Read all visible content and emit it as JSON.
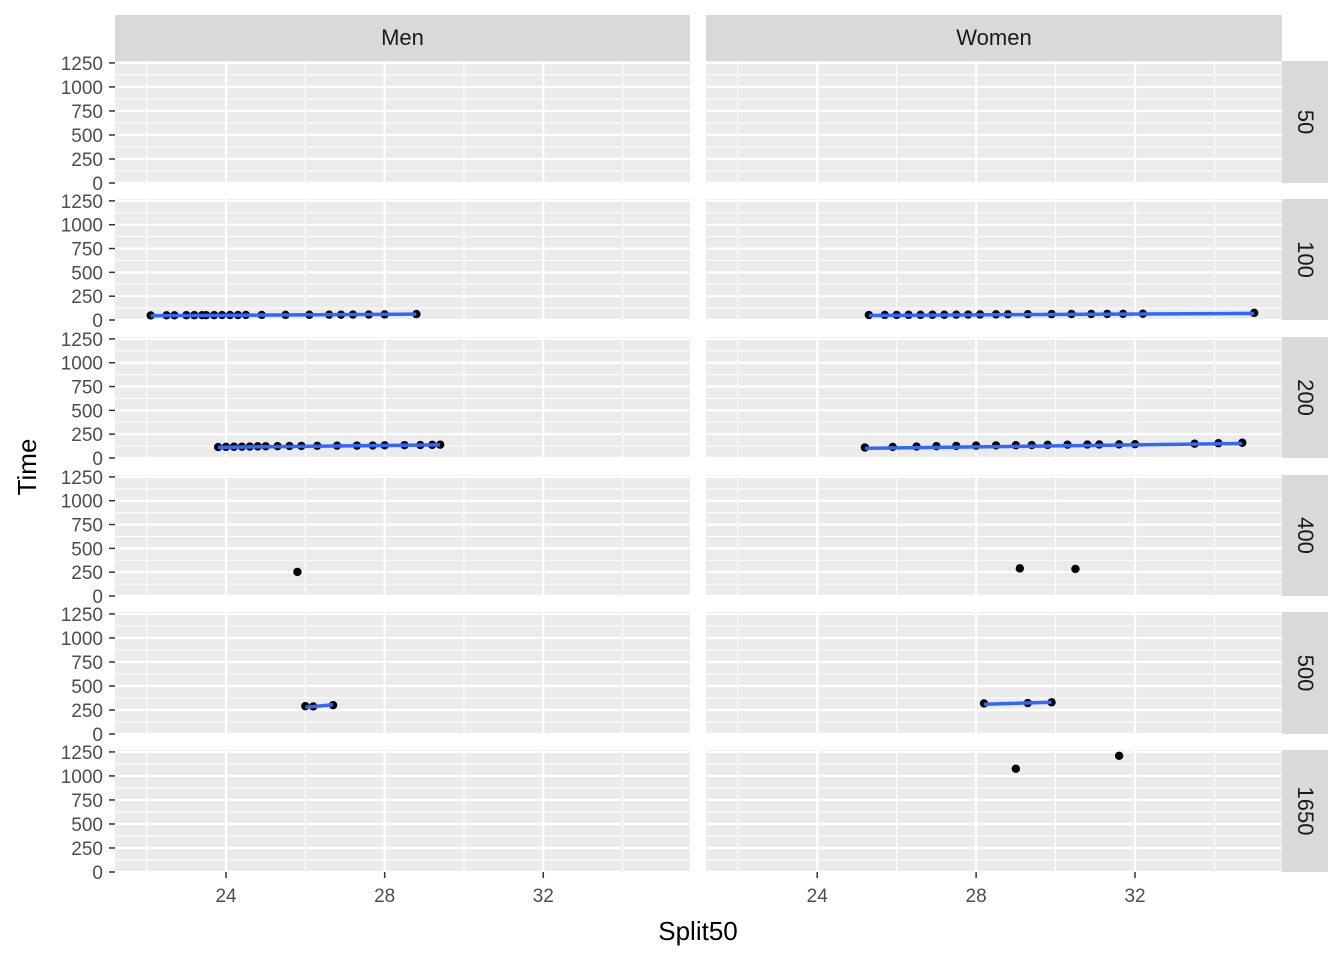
{
  "chart_data": {
    "type": "scatter",
    "title": "",
    "xlabel": "Split50",
    "ylabel": "Time",
    "col_facets": [
      "Men",
      "Women"
    ],
    "row_facets": [
      "50",
      "100",
      "200",
      "400",
      "500",
      "1650"
    ],
    "xlim": [
      21.2,
      35.7
    ],
    "ylim": [
      0,
      1270
    ],
    "x_ticks": [
      24,
      28,
      32
    ],
    "x_tick_labels": [
      "24",
      "28",
      "32"
    ],
    "y_ticks": [
      0,
      250,
      500,
      750,
      1000,
      1250
    ],
    "y_tick_labels": [
      "0",
      "250",
      "500",
      "750",
      "1000",
      "1250"
    ],
    "smooth_line": true,
    "colors": {
      "point": "#000000",
      "smooth": "#3366FF",
      "panel_bg": "#EBEBEB",
      "strip_bg": "#D9D9D9",
      "grid": "#FFFFFF"
    },
    "panels": [
      {
        "col": "Men",
        "row": "50",
        "points": [],
        "smooth": null
      },
      {
        "col": "Women",
        "row": "50",
        "points": [],
        "smooth": null
      },
      {
        "col": "Men",
        "row": "100",
        "points": [
          [
            22.1,
            48
          ],
          [
            22.5,
            49
          ],
          [
            22.7,
            49
          ],
          [
            23.0,
            50
          ],
          [
            23.2,
            50
          ],
          [
            23.4,
            51
          ],
          [
            23.5,
            51
          ],
          [
            23.7,
            51
          ],
          [
            23.9,
            52
          ],
          [
            24.1,
            52
          ],
          [
            24.3,
            52
          ],
          [
            24.5,
            53
          ],
          [
            24.9,
            53
          ],
          [
            25.5,
            54
          ],
          [
            26.1,
            55
          ],
          [
            26.6,
            56
          ],
          [
            26.9,
            56
          ],
          [
            27.2,
            57
          ],
          [
            27.6,
            57
          ],
          [
            28.0,
            58
          ],
          [
            28.8,
            62
          ]
        ],
        "smooth": [
          [
            22.1,
            44
          ],
          [
            28.8,
            62
          ]
        ]
      },
      {
        "col": "Women",
        "row": "100",
        "points": [
          [
            25.3,
            52
          ],
          [
            25.7,
            53
          ],
          [
            26.0,
            53
          ],
          [
            26.3,
            54
          ],
          [
            26.6,
            54
          ],
          [
            26.9,
            55
          ],
          [
            27.2,
            55
          ],
          [
            27.5,
            56
          ],
          [
            27.8,
            57
          ],
          [
            28.1,
            58
          ],
          [
            28.5,
            59
          ],
          [
            28.8,
            60
          ],
          [
            29.3,
            61
          ],
          [
            29.9,
            62
          ],
          [
            30.4,
            63
          ],
          [
            30.9,
            63
          ],
          [
            31.3,
            64
          ],
          [
            31.7,
            65
          ],
          [
            32.2,
            66
          ],
          [
            35.0,
            75
          ]
        ],
        "smooth": [
          [
            25.3,
            47
          ],
          [
            35.0,
            70
          ]
        ]
      },
      {
        "col": "Men",
        "row": "200",
        "points": [
          [
            23.8,
            115
          ],
          [
            24.0,
            117
          ],
          [
            24.2,
            118
          ],
          [
            24.4,
            119
          ],
          [
            24.6,
            120
          ],
          [
            24.8,
            122
          ],
          [
            25.0,
            123
          ],
          [
            25.3,
            124
          ],
          [
            25.6,
            125
          ],
          [
            25.9,
            127
          ],
          [
            26.3,
            128
          ],
          [
            26.8,
            129
          ],
          [
            27.3,
            130
          ],
          [
            27.7,
            131
          ],
          [
            28.0,
            133
          ],
          [
            28.5,
            135
          ],
          [
            28.9,
            136
          ],
          [
            29.2,
            138
          ],
          [
            29.4,
            140
          ]
        ],
        "smooth": [
          [
            23.8,
            112
          ],
          [
            29.4,
            138
          ]
        ]
      },
      {
        "col": "Women",
        "row": "200",
        "points": [
          [
            25.2,
            110
          ],
          [
            25.9,
            116
          ],
          [
            26.5,
            120
          ],
          [
            27.0,
            124
          ],
          [
            27.5,
            127
          ],
          [
            28.0,
            130
          ],
          [
            28.5,
            132
          ],
          [
            29.0,
            134
          ],
          [
            29.4,
            136
          ],
          [
            29.8,
            138
          ],
          [
            30.3,
            140
          ],
          [
            30.8,
            141
          ],
          [
            31.1,
            142
          ],
          [
            31.6,
            143
          ],
          [
            32.0,
            145
          ],
          [
            33.5,
            150
          ],
          [
            34.1,
            155
          ],
          [
            34.7,
            160
          ]
        ],
        "smooth": [
          [
            25.2,
            102
          ],
          [
            34.7,
            152
          ]
        ]
      },
      {
        "col": "Men",
        "row": "400",
        "points": [
          [
            25.8,
            253
          ]
        ],
        "smooth": null
      },
      {
        "col": "Women",
        "row": "400",
        "points": [
          [
            29.1,
            290
          ],
          [
            30.5,
            284
          ]
        ],
        "smooth": null
      },
      {
        "col": "Men",
        "row": "500",
        "points": [
          [
            26.0,
            290
          ],
          [
            26.2,
            287
          ],
          [
            26.7,
            300
          ]
        ],
        "smooth": [
          [
            26.0,
            279
          ],
          [
            26.7,
            304
          ]
        ]
      },
      {
        "col": "Women",
        "row": "500",
        "points": [
          [
            28.2,
            318
          ],
          [
            29.3,
            322
          ],
          [
            29.9,
            330
          ]
        ],
        "smooth": [
          [
            28.2,
            310
          ],
          [
            29.9,
            331
          ]
        ]
      },
      {
        "col": "Men",
        "row": "1650",
        "points": [],
        "smooth": null
      },
      {
        "col": "Women",
        "row": "1650",
        "points": [
          [
            29.0,
            1075
          ],
          [
            31.6,
            1210
          ]
        ],
        "smooth": null
      }
    ]
  }
}
